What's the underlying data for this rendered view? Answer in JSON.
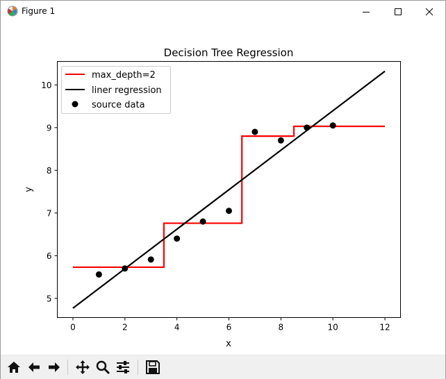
{
  "window": {
    "title": "Figure 1",
    "icons": {
      "app": "matplotlib-figure-icon",
      "minimize": "minimize-icon",
      "maximize": "maximize-icon",
      "close": "close-icon"
    }
  },
  "toolbar": {
    "buttons": [
      {
        "name": "home",
        "icon": "home-icon"
      },
      {
        "name": "back",
        "icon": "back-arrow-icon"
      },
      {
        "name": "forward",
        "icon": "forward-arrow-icon"
      },
      {
        "name": "pan",
        "icon": "pan-move-icon"
      },
      {
        "name": "zoom",
        "icon": "zoom-magnifier-icon"
      },
      {
        "name": "configure-subplots",
        "icon": "sliders-icon"
      },
      {
        "name": "save",
        "icon": "save-floppy-icon"
      }
    ]
  },
  "chart_data": {
    "type": "line",
    "title": "Decision Tree Regression",
    "xlabel": "x",
    "ylabel": "y",
    "xlim": [
      -0.6,
      12.6
    ],
    "ylim": [
      4.55,
      10.55
    ],
    "xticks": [
      0,
      2,
      4,
      6,
      8,
      10,
      12
    ],
    "yticks": [
      5,
      6,
      7,
      8,
      9,
      10
    ],
    "grid": false,
    "legend_position": "top-left",
    "series": [
      {
        "name": "max_depth=2",
        "kind": "step",
        "color": "#ff0000",
        "x": [
          0,
          3.5,
          3.5,
          6.5,
          6.5,
          8.5,
          8.5,
          12
        ],
        "y": [
          5.73,
          5.73,
          6.76,
          6.76,
          8.8,
          8.8,
          9.03,
          9.03
        ]
      },
      {
        "name": "liner regression",
        "kind": "line",
        "color": "#000000",
        "x": [
          0,
          12
        ],
        "y": [
          4.77,
          10.32
        ]
      },
      {
        "name": "source data",
        "kind": "scatter",
        "color": "#000000",
        "x": [
          1,
          2,
          3,
          4,
          5,
          6,
          7,
          8,
          9,
          10
        ],
        "y": [
          5.56,
          5.7,
          5.91,
          6.4,
          6.8,
          7.05,
          8.9,
          8.7,
          9.0,
          9.05
        ]
      }
    ]
  }
}
